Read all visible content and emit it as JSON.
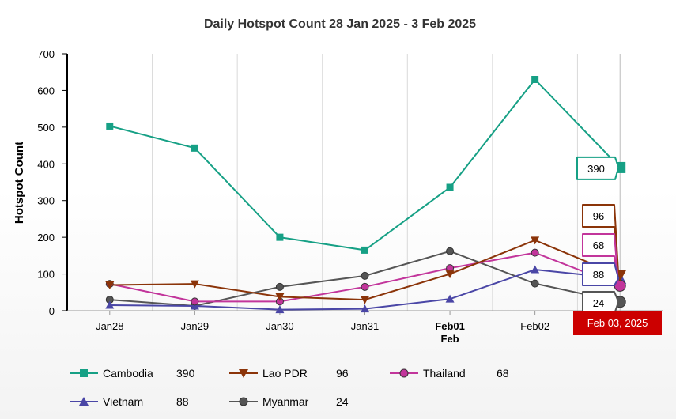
{
  "chart_data": {
    "type": "line",
    "title": "Daily Hotspot Count 28 Jan 2025 - 3 Feb 2025",
    "ylabel": "Hotspot Count",
    "xlabel": "",
    "ylim": [
      0,
      700
    ],
    "yticks": [
      0,
      100,
      200,
      300,
      400,
      500,
      600,
      700
    ],
    "categories": [
      "Jan28",
      "Jan29",
      "Jan30",
      "Jan31",
      "Feb01",
      "Feb02",
      "Feb03"
    ],
    "category_sublabels": {
      "Feb01": "Feb"
    },
    "grid": "vertical",
    "crosshair_label": "Feb 03, 2025",
    "series": [
      {
        "name": "Cambodia",
        "color": "#16a085",
        "marker": "square",
        "values": [
          503,
          443,
          200,
          165,
          336,
          630,
          390
        ],
        "last": "390"
      },
      {
        "name": "Lao PDR",
        "color": "#8b3409",
        "marker": "triangle-down",
        "values": [
          70,
          73,
          38,
          30,
          100,
          192,
          96
        ],
        "last": "96"
      },
      {
        "name": "Thailand",
        "color": "#c2359b",
        "marker": "circle",
        "values": [
          73,
          25,
          25,
          65,
          116,
          158,
          68
        ],
        "last": "68"
      },
      {
        "name": "Vietnam",
        "color": "#4a46a6",
        "marker": "triangle-up",
        "values": [
          15,
          13,
          3,
          5,
          32,
          112,
          88
        ],
        "last": "88"
      },
      {
        "name": "Myanmar",
        "color": "#555555",
        "marker": "circle",
        "values": [
          30,
          13,
          65,
          95,
          162,
          74,
          24
        ],
        "last": "24"
      }
    ]
  }
}
